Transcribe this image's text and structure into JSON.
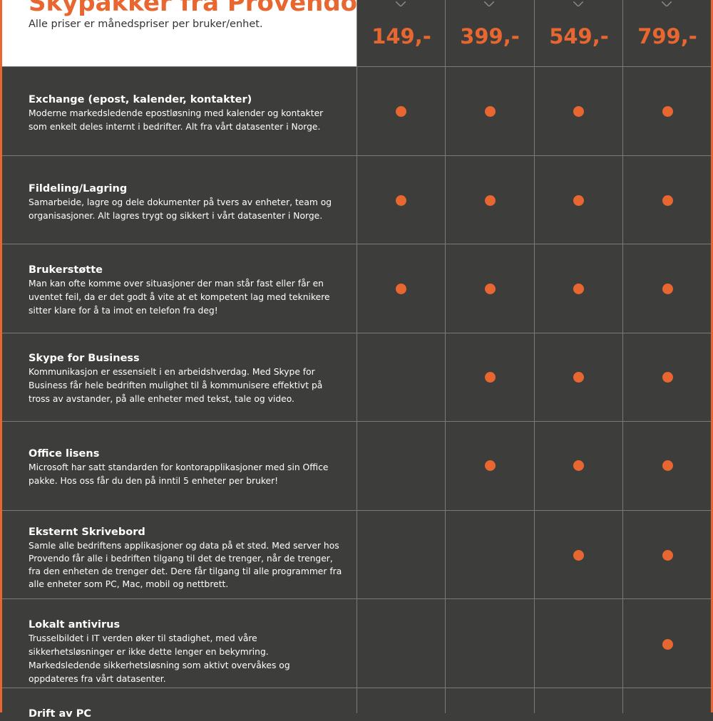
{
  "header": {
    "title": "Skypakker fra Provendo",
    "subtitle": "Alle priser er månedspriser per bruker/enhet."
  },
  "prices": [
    "149,-",
    "399,-",
    "549,-",
    "799,-"
  ],
  "colors": {
    "accent": "#e8662f",
    "background": "#3d3d3c",
    "divider": "#7a7a7a"
  },
  "rows": [
    {
      "title": "Exchange (epost, kalender, kontakter)",
      "desc": "Moderne markedsledende epostløsning med kalender og kontakter som enkelt deles internt i bedrifter. Alt fra vårt datasenter i Norge.",
      "included": [
        true,
        true,
        true,
        true
      ]
    },
    {
      "title": "Fildeling/Lagring",
      "desc": "Samarbeide, lagre og dele dokumenter på tvers av enheter, team og organisasjoner. Alt lagres trygt og sikkert i vårt datasenter i Norge.",
      "included": [
        true,
        true,
        true,
        true
      ]
    },
    {
      "title": "Brukerstøtte",
      "desc": "Man kan ofte komme over situasjoner der man står fast eller får en uventet feil, da er det godt å vite at et kompetent lag med teknikere sitter klare for å ta imot en telefon fra deg!",
      "included": [
        true,
        true,
        true,
        true
      ]
    },
    {
      "title": "Skype for Business",
      "desc": "Kommunikasjon er essensielt i en arbeidshverdag. Med Skype for Business får hele bedriften mulighet til å kommunisere effektivt på tross av avstander, på alle enheter med tekst, tale og video.",
      "included": [
        false,
        true,
        true,
        true
      ]
    },
    {
      "title": "Office lisens",
      "desc": "Microsoft har satt standarden for kontorapplikasjoner med sin Office pakke. Hos oss får du den på inntil 5 enheter per bruker!",
      "included": [
        false,
        true,
        true,
        true
      ]
    },
    {
      "title": "Eksternt Skrivebord",
      "desc": "Samle alle bedriftens applikasjoner og data på et sted. Med server hos Provendo får alle i bedriften tilgang til det de trenger, når de trenger, fra den enheten de trenger det. Dere får tilgang til alle programmer fra alle enheter som PC, Mac, mobil og nettbrett.",
      "included": [
        false,
        false,
        true,
        true
      ]
    },
    {
      "title": "Lokalt antivirus",
      "desc": "Trusselbildet i IT verden øker til stadighet, med våre sikkerhetsløsninger er ikke dette lenger en bekymring. Markedsledende sikkerhetsløsning som aktivt overvåkes og oppdateres fra vårt datasenter.",
      "included": [
        false,
        false,
        false,
        true
      ]
    },
    {
      "title": "Drift av PC",
      "desc": "",
      "included": [
        false,
        false,
        false,
        false
      ]
    }
  ]
}
